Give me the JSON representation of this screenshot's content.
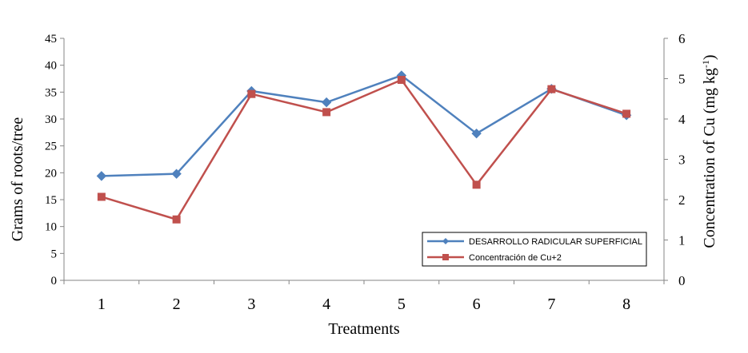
{
  "chart_data": {
    "type": "line",
    "title": "",
    "xlabel": "Treatments",
    "ylabel_left": "Grams of roots/tree",
    "ylabel_right": "Concentration of Cu (mg kg",
    "ylabel_right_sup": "-1",
    "ylabel_right_close": ")",
    "categories": [
      "1",
      "2",
      "3",
      "4",
      "5",
      "6",
      "7",
      "8"
    ],
    "ylim_left": [
      0,
      45
    ],
    "yticks_left": [
      0,
      5,
      10,
      15,
      20,
      25,
      30,
      35,
      40,
      45
    ],
    "ylim_right": [
      0,
      6
    ],
    "yticks_right": [
      0,
      1,
      2,
      3,
      4,
      5,
      6
    ],
    "grid": false,
    "legend_position": "bottom-right",
    "series": [
      {
        "name": "DESARROLLO RADICULAR SUPERFICIAL",
        "axis": "left",
        "color": "#4F81BD",
        "marker": "diamond",
        "values": [
          19.4,
          19.8,
          35.2,
          33.1,
          38.1,
          27.3,
          35.6,
          30.7
        ]
      },
      {
        "name": "Concentración de Cu+2",
        "axis": "right",
        "color": "#C0504D",
        "marker": "square",
        "values": [
          2.07,
          1.51,
          4.62,
          4.17,
          4.97,
          2.37,
          4.74,
          4.13
        ]
      }
    ]
  }
}
